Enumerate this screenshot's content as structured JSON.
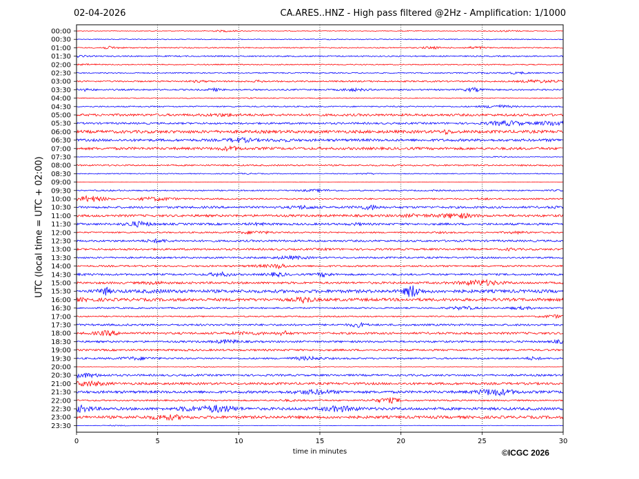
{
  "header": {
    "date": "02-04-2026",
    "title": "CA.ARES..HNZ - High pass filtered @2Hz - Amplification: 1/1000"
  },
  "footer": {
    "copyright": "©ICGC 2026"
  },
  "colors": {
    "trace_even": "#ff0000",
    "trace_odd": "#0000ff",
    "grid": "#000000"
  },
  "chart_data": {
    "type": "line",
    "title": "CA.ARES..HNZ - High pass filtered @2Hz - Amplification: 1/1000",
    "xlabel": "time in minutes",
    "ylabel": "UTC (local time = UTC + 02:00)",
    "xlim": [
      0,
      30
    ],
    "x_ticks": [
      0,
      5,
      10,
      15,
      20,
      25,
      30
    ],
    "grid_x": true,
    "trace_colors_alternate": [
      "red",
      "blue"
    ],
    "rows": [
      "00:00",
      "00:30",
      "01:00",
      "01:30",
      "02:00",
      "02:30",
      "03:00",
      "03:30",
      "04:00",
      "04:30",
      "05:00",
      "05:30",
      "06:00",
      "06:30",
      "07:00",
      "07:30",
      "08:00",
      "08:30",
      "09:00",
      "09:30",
      "10:00",
      "10:30",
      "11:00",
      "11:30",
      "12:00",
      "12:30",
      "13:00",
      "13:30",
      "14:00",
      "14:30",
      "15:00",
      "15:30",
      "16:00",
      "16:30",
      "17:00",
      "17:30",
      "18:00",
      "18:30",
      "19:00",
      "19:30",
      "20:00",
      "20:30",
      "21:00",
      "21:30",
      "22:00",
      "22:30",
      "23:00",
      "23:30"
    ],
    "row_noise_level": [
      0.15,
      0.2,
      0.25,
      0.3,
      0.25,
      0.25,
      0.35,
      0.35,
      0.2,
      0.3,
      0.55,
      0.45,
      0.7,
      0.6,
      0.6,
      0.15,
      0.35,
      0.2,
      0.05,
      0.3,
      0.35,
      0.5,
      0.55,
      0.5,
      0.35,
      0.45,
      0.45,
      0.4,
      0.4,
      0.45,
      0.5,
      0.75,
      0.7,
      0.35,
      0.3,
      0.45,
      0.5,
      0.45,
      0.45,
      0.4,
      0.1,
      0.45,
      0.55,
      0.6,
      0.35,
      0.65,
      0.65,
      0.1
    ]
  }
}
